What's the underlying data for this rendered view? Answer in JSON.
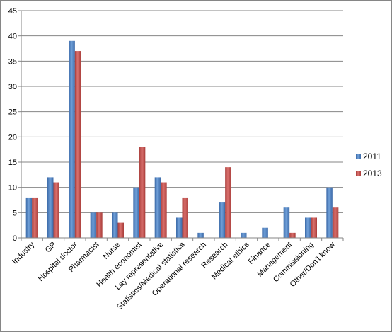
{
  "chart_data": {
    "type": "bar",
    "title": "",
    "xlabel": "",
    "ylabel": "",
    "ylim": [
      0,
      45
    ],
    "yticks": [
      0,
      5,
      10,
      15,
      20,
      25,
      30,
      35,
      40,
      45
    ],
    "grid": true,
    "legend_position": "right",
    "categories": [
      "Industry",
      "GP",
      "Hospital doctor",
      "Pharmacist",
      "Nurse",
      "Health economist",
      "Lay representative",
      "Statistics/Medical statistics",
      "Operational research",
      "Research",
      "Medical ethics",
      "Finance",
      "Management",
      "Commissioning",
      "Other/Don't know"
    ],
    "series": [
      {
        "name": "2011",
        "color": "#4a7ebb",
        "values": [
          8,
          12,
          39,
          5,
          5,
          10,
          12,
          4,
          1,
          7,
          1,
          2,
          6,
          4,
          10
        ]
      },
      {
        "name": "2013",
        "color": "#be4b48",
        "values": [
          8,
          11,
          37,
          5,
          3,
          18,
          11,
          8,
          0,
          14,
          0,
          0,
          1,
          4,
          6
        ]
      }
    ]
  }
}
